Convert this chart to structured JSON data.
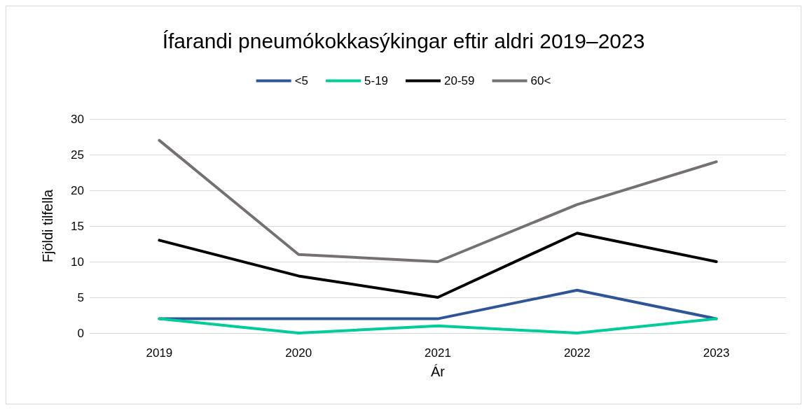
{
  "chart_data": {
    "type": "line",
    "title": "Ífarandi pneumókokkasýkingar eftir aldri 2019–2023",
    "xlabel": "Ár",
    "ylabel": "Fjöldi tilfella",
    "categories": [
      "2019",
      "2020",
      "2021",
      "2022",
      "2023"
    ],
    "series": [
      {
        "name": "<5",
        "color": "#2f5597",
        "values": [
          2,
          2,
          2,
          6,
          2
        ]
      },
      {
        "name": "5-19",
        "color": "#00cc99",
        "values": [
          2,
          0,
          1,
          0,
          2
        ]
      },
      {
        "name": "20-59",
        "color": "#000000",
        "values": [
          13,
          8,
          5,
          14,
          10
        ]
      },
      {
        "name": "60<",
        "color": "#767171",
        "values": [
          27,
          11,
          10,
          18,
          24
        ]
      }
    ],
    "ylim": [
      0,
      30
    ],
    "yticks": [
      0,
      5,
      10,
      15,
      20,
      25,
      30
    ],
    "grid": "y",
    "legend": "top",
    "marker": "none",
    "line_style": "solid"
  }
}
